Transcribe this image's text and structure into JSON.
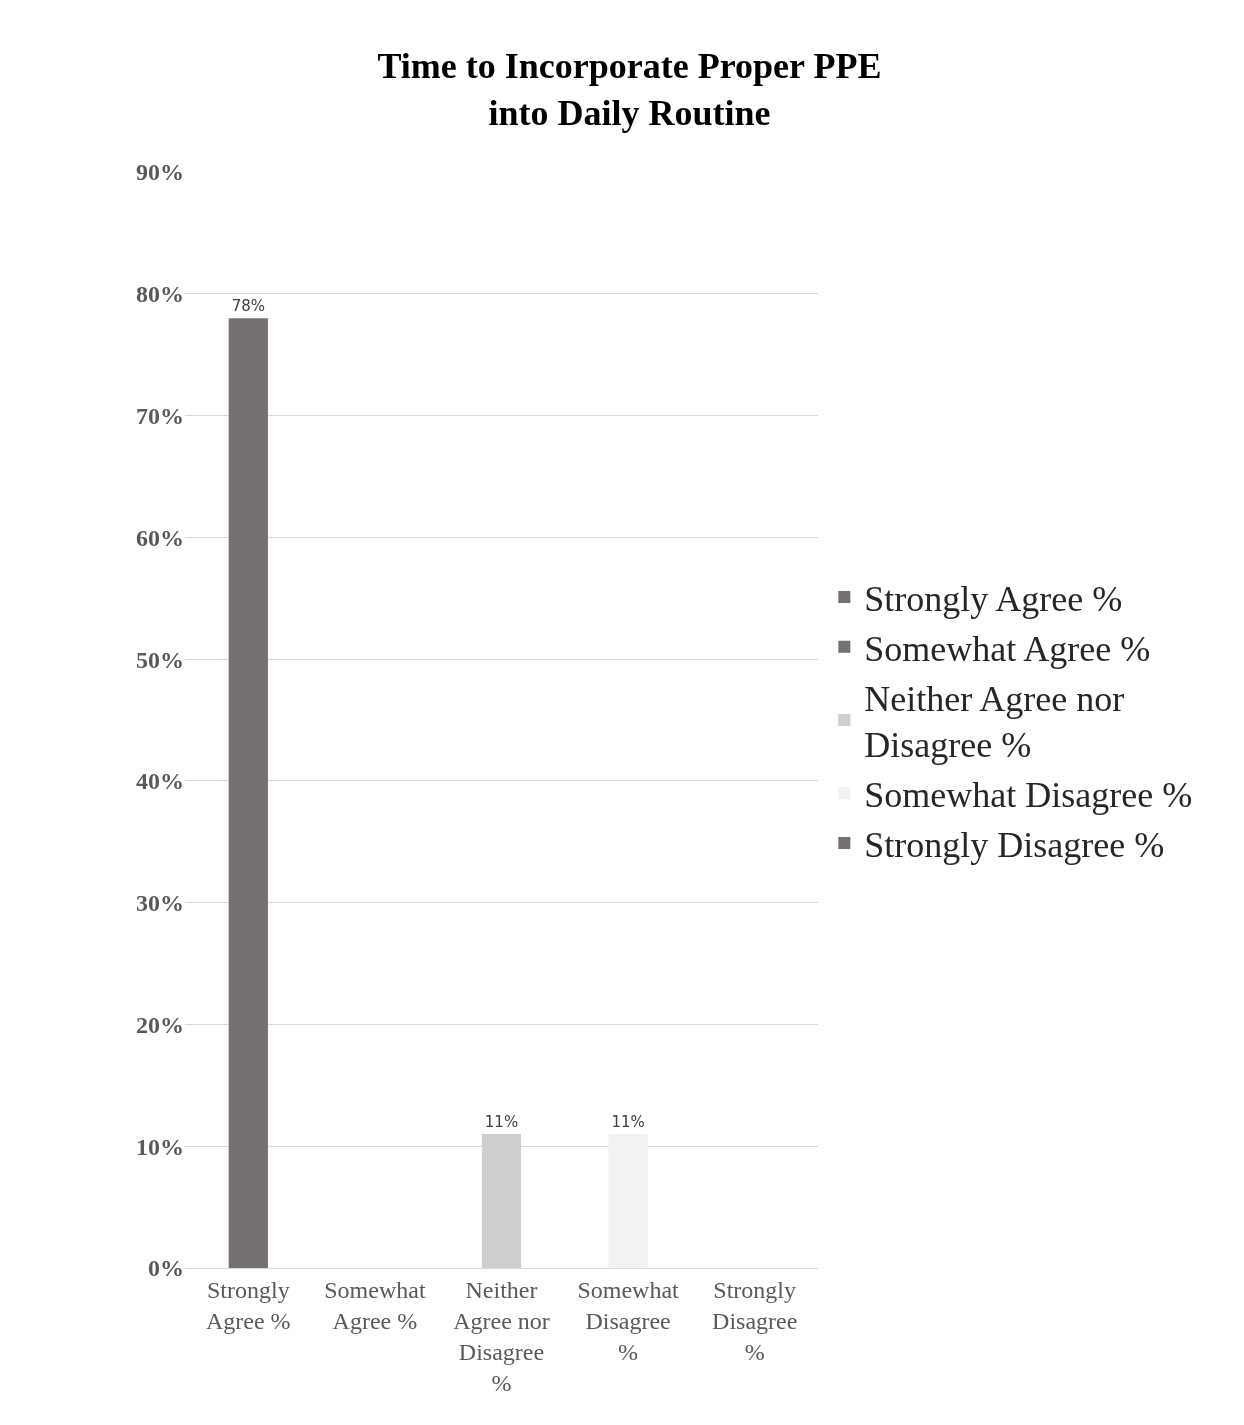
{
  "chart_data": {
    "type": "bar",
    "title": "Time to Incorporate Proper PPE into Daily Routine",
    "categories": [
      "Strongly Agree %",
      "Somewhat Agree %",
      "Neither Agree nor Disagree %",
      "Somewhat Disagree %",
      "Strongly Disagree %"
    ],
    "series": [
      {
        "name": "Strongly Agree %",
        "color": "#767171",
        "values": [
          78,
          null,
          null,
          null,
          null
        ],
        "value_labels": [
          "78%",
          null,
          null,
          null,
          null
        ]
      },
      {
        "name": "Somewhat Agree %",
        "color": "#767171",
        "values": [
          null,
          null,
          null,
          null,
          null
        ]
      },
      {
        "name": "Neither Agree nor Disagree %",
        "color": "#d0cece",
        "values": [
          null,
          null,
          11,
          null,
          null
        ],
        "value_labels": [
          null,
          null,
          "11%",
          null,
          null
        ]
      },
      {
        "name": "Somewhat Disagree %",
        "color": "#f2f2f2",
        "values": [
          null,
          null,
          null,
          11,
          null
        ],
        "value_labels": [
          null,
          null,
          null,
          "11%",
          null
        ]
      },
      {
        "name": "Strongly Disagree %",
        "color": "#767171",
        "values": [
          null,
          null,
          null,
          null,
          null
        ]
      }
    ],
    "ylim": [
      0,
      90
    ],
    "yticks": [
      {
        "value": 0,
        "label": "0%"
      },
      {
        "value": 10,
        "label": "10%"
      },
      {
        "value": 20,
        "label": "20%"
      },
      {
        "value": 30,
        "label": "30%"
      },
      {
        "value": 40,
        "label": "40%"
      },
      {
        "value": 50,
        "label": "50%"
      },
      {
        "value": 60,
        "label": "60%"
      },
      {
        "value": 70,
        "label": "70%"
      },
      {
        "value": 80,
        "label": "80%"
      },
      {
        "value": 90,
        "label": "90%"
      }
    ],
    "grid": "y",
    "legend": "right"
  }
}
